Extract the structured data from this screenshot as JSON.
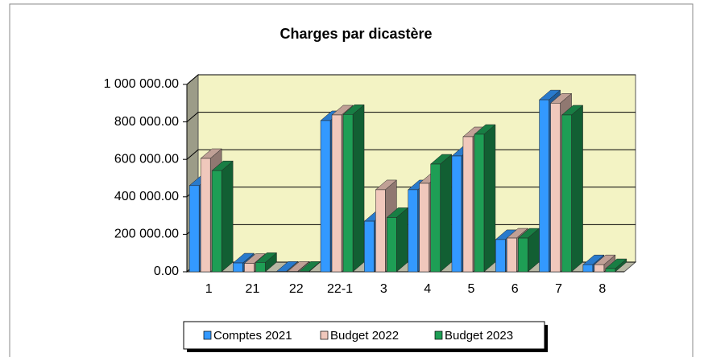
{
  "chart_data": {
    "type": "bar3d",
    "title": "Charges par dicastère",
    "categories": [
      "1",
      "21",
      "22",
      "22-1",
      "3",
      "4",
      "5",
      "6",
      "7",
      "8"
    ],
    "series": [
      {
        "name": "Comptes 2021",
        "color": "#3399ff",
        "values": [
          460000,
          47000,
          3000,
          807000,
          270000,
          438000,
          618000,
          172000,
          918000,
          38000
        ]
      },
      {
        "name": "Budget 2022",
        "color": "#f0c8bc",
        "values": [
          605000,
          45000,
          3000,
          837000,
          438000,
          472000,
          721000,
          180000,
          900000,
          38000
        ]
      },
      {
        "name": "Budget 2023",
        "color": "#1e9e55",
        "values": [
          540000,
          50000,
          3000,
          840000,
          290000,
          575000,
          734000,
          180000,
          837000,
          17000
        ]
      }
    ],
    "ylim": [
      0,
      1000000
    ],
    "yticks": [
      {
        "value": 0,
        "label": "0.00"
      },
      {
        "value": 200000,
        "label": "200 000.00"
      },
      {
        "value": 400000,
        "label": "400 000.00"
      },
      {
        "value": 600000,
        "label": "600 000.00"
      },
      {
        "value": 800000,
        "label": "800 000.00"
      },
      {
        "value": 1000000,
        "label": "1 000 000.00"
      }
    ],
    "grid": true,
    "legend": "bottom"
  }
}
